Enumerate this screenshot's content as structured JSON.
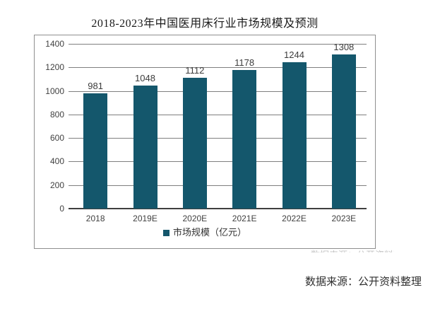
{
  "page": {
    "title": "2018-2023年中国医用床行业市场规模及预测",
    "source_note": "数据来源：公开资料整理"
  },
  "legend": {
    "label": "市场规模（亿元）"
  },
  "colors": {
    "bar": "#14576C",
    "grid": "#7F7F7F",
    "axis": "#3F3F3F",
    "tick_text": "#404040",
    "frame_border": "#8F8F8F"
  },
  "chart_data": {
    "type": "bar",
    "title": "2018-2023年中国医用床行业市场规模及预测",
    "categories": [
      "2018",
      "2019E",
      "2020E",
      "2021E",
      "2022E",
      "2023E"
    ],
    "series": [
      {
        "name": "市场规模（亿元）",
        "values": [
          981,
          1048,
          1112,
          1178,
          1244,
          1308
        ]
      }
    ],
    "xlabel": "",
    "ylabel": "",
    "ylim": [
      0,
      1400
    ],
    "yticks": [
      0,
      200,
      400,
      600,
      800,
      1000,
      1200,
      1400
    ],
    "grid": true,
    "data_labels": true,
    "legend_position": "bottom"
  }
}
